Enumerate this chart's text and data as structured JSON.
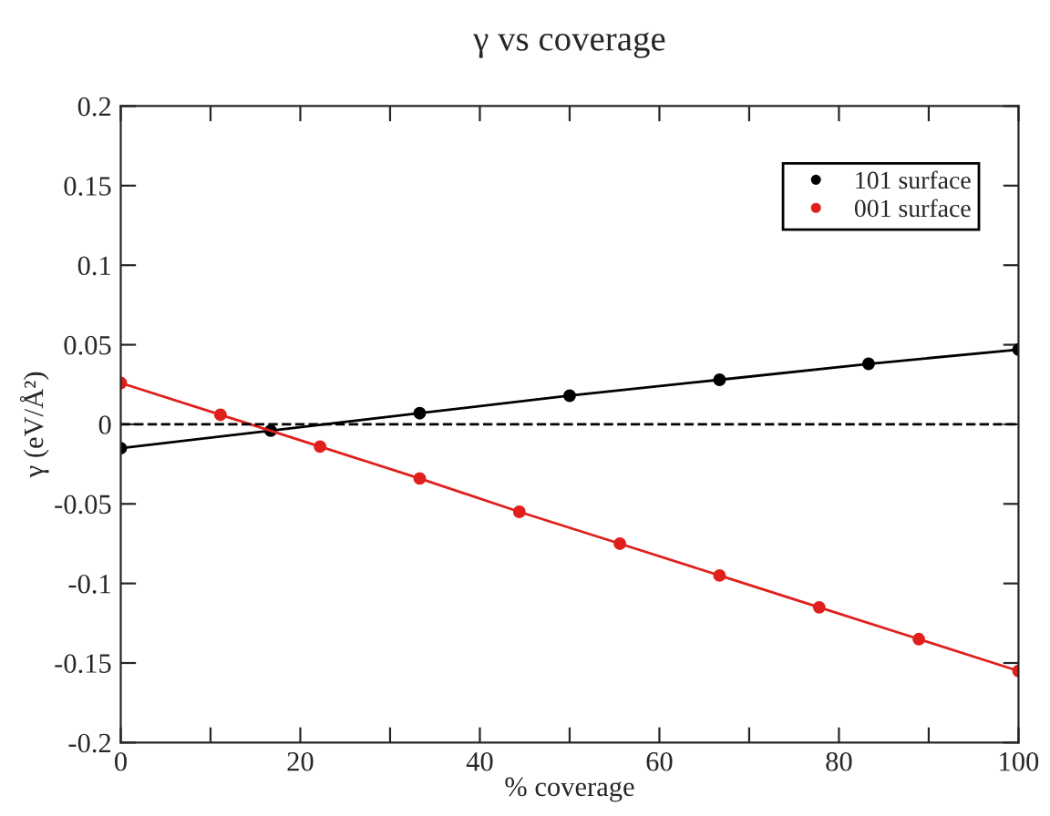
{
  "chart_data": {
    "type": "line",
    "title": "γ vs coverage",
    "xlabel": "% coverage",
    "ylabel": "γ (eV/Å²)",
    "series": [
      {
        "name": "101 surface",
        "color": "#000000",
        "x": [
          0,
          16.7,
          33.3,
          50,
          66.7,
          83.3,
          100
        ],
        "values": [
          -0.015,
          -0.004,
          0.007,
          0.018,
          0.028,
          0.038,
          0.047
        ]
      },
      {
        "name": "001 surface",
        "color": "#e0201c",
        "x": [
          0,
          11.1,
          22.2,
          33.3,
          44.4,
          55.6,
          66.7,
          77.8,
          88.9,
          100
        ],
        "values": [
          0.026,
          0.006,
          -0.014,
          -0.034,
          -0.055,
          -0.075,
          -0.095,
          -0.115,
          -0.135,
          -0.155
        ]
      }
    ],
    "xlim": [
      0,
      100
    ],
    "ylim": [
      -0.2,
      0.2
    ],
    "xticks": [
      0,
      {
        "value": 10,
        "label": null
      },
      20,
      {
        "value": 30,
        "label": null
      },
      40,
      {
        "value": 50,
        "label": null
      },
      60,
      {
        "value": 70,
        "label": null
      },
      80,
      {
        "value": 90,
        "label": null
      },
      100
    ],
    "yticks": [
      -0.2,
      -0.15,
      -0.1,
      -0.05,
      0,
      0.05,
      0.1,
      0.15,
      0.2
    ],
    "ref_lines": [
      {
        "axis": "y",
        "value": 0,
        "color": "#000000",
        "line_style": "dashed"
      }
    ],
    "marker": "circle",
    "line_style": "solid",
    "legend": "top right",
    "grid": false
  }
}
